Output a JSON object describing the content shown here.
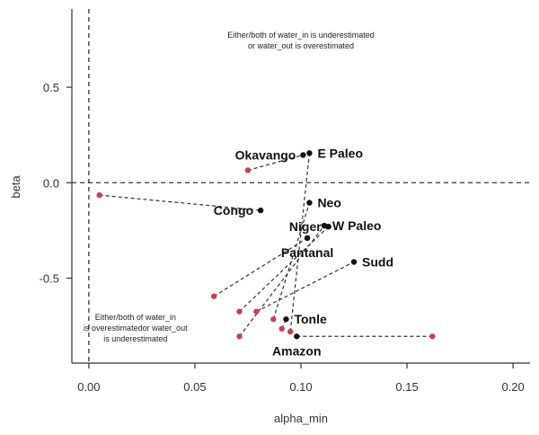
{
  "chart_data": {
    "type": "scatter",
    "xlabel": "alpha_min",
    "ylabel": "beta",
    "xlim": [
      -0.008,
      0.208
    ],
    "ylim": [
      -0.945,
      0.91
    ],
    "xticks": [
      0.0,
      0.05,
      0.1,
      0.15,
      0.2
    ],
    "xtick_labels": [
      "0.00",
      "0.05",
      "0.10",
      "0.15",
      "0.20"
    ],
    "yticks": [
      -0.5,
      0.0,
      0.5
    ],
    "ytick_labels": [
      "-0.5",
      "0.0",
      "0.5"
    ],
    "reference_lines": {
      "vertical_x": 0.0,
      "horizontal_y": 0.0,
      "style": "dashed"
    },
    "grid": false,
    "annotations": [
      {
        "lines": [
          "Either/both of water_in is underestimated",
          "or water_out is overestimated"
        ],
        "x": 0.1,
        "y": 0.76
      },
      {
        "lines": [
          "Either/both of water_in",
          "is overestimatedor water_out",
          "is underestimated"
        ],
        "x": 0.022,
        "y": -0.72
      }
    ],
    "points": [
      {
        "name": "Okavango",
        "x": 0.101,
        "y": 0.145,
        "x0": 0.075,
        "y0": 0.065,
        "label_pos": "left"
      },
      {
        "name": "E Paleo",
        "x": 0.104,
        "y": 0.155,
        "x0": 0.095,
        "y0": -0.78,
        "label_pos": "right"
      },
      {
        "name": "Congo",
        "x": 0.081,
        "y": -0.145,
        "x0": 0.005,
        "y0": -0.065,
        "label_pos": "left"
      },
      {
        "name": "Neo",
        "x": 0.104,
        "y": -0.105,
        "x0": 0.087,
        "y0": -0.715,
        "label_pos": "right"
      },
      {
        "name": "W Paleo",
        "x": 0.111,
        "y": -0.225,
        "x0": 0.071,
        "y0": -0.805,
        "label_pos": "right"
      },
      {
        "name": "Niger",
        "x": 0.113,
        "y": -0.23,
        "x0": 0.071,
        "y0": -0.675,
        "label_pos": "left"
      },
      {
        "name": "Pantanal",
        "x": 0.103,
        "y": -0.29,
        "x0": 0.059,
        "y0": -0.595,
        "label_pos": "below"
      },
      {
        "name": "Sudd",
        "x": 0.125,
        "y": -0.415,
        "x0": 0.079,
        "y0": -0.675,
        "label_pos": "right"
      },
      {
        "name": "Tonle",
        "x": 0.093,
        "y": -0.715,
        "x0": 0.091,
        "y0": -0.765,
        "label_pos": "right"
      },
      {
        "name": "Amazon",
        "x": 0.098,
        "y": -0.805,
        "x0": 0.162,
        "y0": -0.805,
        "label_pos": "below"
      }
    ],
    "colors": {
      "point": "#111111",
      "origin_point": "#c8424e",
      "connector": "#333333",
      "axis": "#333333"
    }
  }
}
